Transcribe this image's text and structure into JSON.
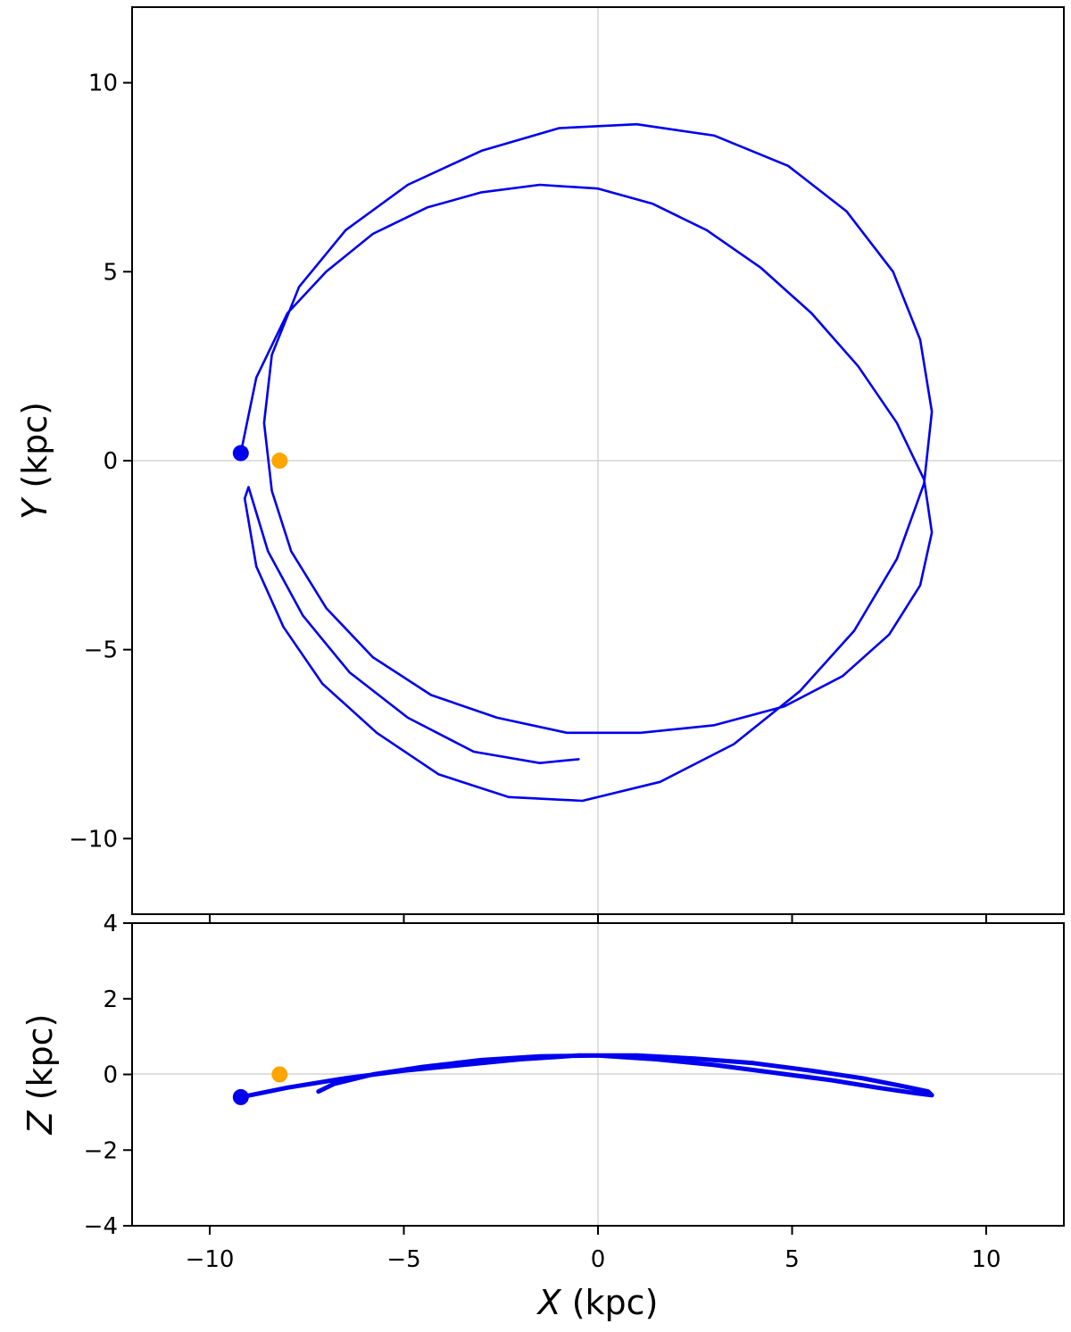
{
  "chart_data": [
    {
      "type": "line",
      "panel": "top",
      "ylabel_var": "Y",
      "ylabel_unit": " (kpc)",
      "xlim": [
        -12,
        12
      ],
      "ylim": [
        -12,
        12
      ],
      "xticks": [
        -10,
        -5,
        0,
        5,
        10
      ],
      "yticks": [
        10,
        5,
        0,
        -5,
        -10
      ],
      "ytick_labels": [
        "10",
        "5",
        "0",
        "−5",
        "−10"
      ],
      "reference_lines": {
        "x": 0,
        "y": 0
      },
      "grid": false,
      "series": [
        {
          "color": "#0000ee",
          "x": [
            -9.2,
            -8.8,
            -8.0,
            -7.0,
            -5.8,
            -4.4,
            -3.0,
            -1.5,
            0.0,
            1.4,
            2.8,
            4.2,
            5.5,
            6.7,
            7.7,
            8.4,
            8.6,
            8.3,
            7.5,
            6.3,
            4.8,
            3.0,
            1.1,
            -0.8,
            -2.6,
            -4.3,
            -5.8,
            -7.0,
            -7.9,
            -8.4,
            -8.6,
            -8.4,
            -7.7,
            -6.5,
            -4.9,
            -3.0,
            -1.0,
            1.0,
            3.0,
            4.9,
            6.4,
            7.6,
            8.3,
            8.6,
            8.4,
            7.7,
            6.6,
            5.2,
            3.5,
            1.6,
            -0.4,
            -2.3,
            -4.1,
            -5.7,
            -7.1,
            -8.1,
            -8.8,
            -9.1,
            -9.0,
            -8.5,
            -7.6,
            -6.4,
            -4.9,
            -3.2,
            -1.5,
            -0.5
          ],
          "y": [
            0.2,
            2.2,
            3.9,
            5.0,
            6.0,
            6.7,
            7.1,
            7.3,
            7.2,
            6.8,
            6.1,
            5.1,
            3.9,
            2.5,
            1.0,
            -0.5,
            -1.9,
            -3.3,
            -4.6,
            -5.7,
            -6.5,
            -7.0,
            -7.2,
            -7.2,
            -6.8,
            -6.2,
            -5.2,
            -3.9,
            -2.4,
            -0.8,
            1.0,
            2.8,
            4.6,
            6.1,
            7.3,
            8.2,
            8.8,
            8.9,
            8.6,
            7.8,
            6.6,
            5.0,
            3.2,
            1.3,
            -0.6,
            -2.6,
            -4.5,
            -6.1,
            -7.5,
            -8.5,
            -9.0,
            -8.9,
            -8.3,
            -7.2,
            -5.9,
            -4.4,
            -2.8,
            -1.0,
            -0.7,
            -2.4,
            -4.1,
            -5.6,
            -6.8,
            -7.7,
            -8.0,
            -7.9
          ]
        }
      ],
      "markers": [
        {
          "name": "start",
          "x": -9.2,
          "y": 0.2,
          "color": "#0000ee"
        },
        {
          "name": "sun",
          "x": -8.2,
          "y": 0.0,
          "color": "#ffa500"
        }
      ]
    },
    {
      "type": "line",
      "panel": "bottom",
      "xlabel_var": "X",
      "xlabel_unit": " (kpc)",
      "ylabel_var": "Z",
      "ylabel_unit": " (kpc)",
      "xlim": [
        -12,
        12
      ],
      "ylim": [
        -4,
        4
      ],
      "xticks": [
        -10,
        -5,
        0,
        5,
        10
      ],
      "xtick_labels": [
        "−10",
        "−5",
        "0",
        "5",
        "10"
      ],
      "yticks": [
        4,
        2,
        0,
        -2,
        -4
      ],
      "ytick_labels": [
        "4",
        "2",
        "0",
        "−2",
        "−4"
      ],
      "reference_lines": {
        "x": 0,
        "y": 0
      },
      "grid": false,
      "series": [
        {
          "color": "#0000ee",
          "x": [
            -9.2,
            -8.0,
            -6.5,
            -5.0,
            -3.5,
            -2.0,
            -0.5,
            1.0,
            2.5,
            4.0,
            5.5,
            6.8,
            7.8,
            8.5,
            8.6,
            8.2,
            7.2,
            6.0,
            4.5,
            3.0,
            1.5,
            0.0,
            -1.5,
            -3.0,
            -4.5,
            -5.8,
            -6.8,
            -7.2
          ],
          "y": [
            -0.6,
            -0.35,
            -0.1,
            0.1,
            0.25,
            0.4,
            0.5,
            0.5,
            0.42,
            0.3,
            0.1,
            -0.1,
            -0.3,
            -0.45,
            -0.55,
            -0.5,
            -0.35,
            -0.15,
            0.05,
            0.25,
            0.4,
            0.5,
            0.48,
            0.38,
            0.2,
            0.0,
            -0.25,
            -0.45
          ]
        }
      ],
      "markers": [
        {
          "name": "start",
          "x": -9.2,
          "y": -0.6,
          "color": "#0000ee"
        },
        {
          "name": "sun",
          "x": -8.2,
          "y": 0.0,
          "color": "#ffa500"
        }
      ]
    }
  ]
}
